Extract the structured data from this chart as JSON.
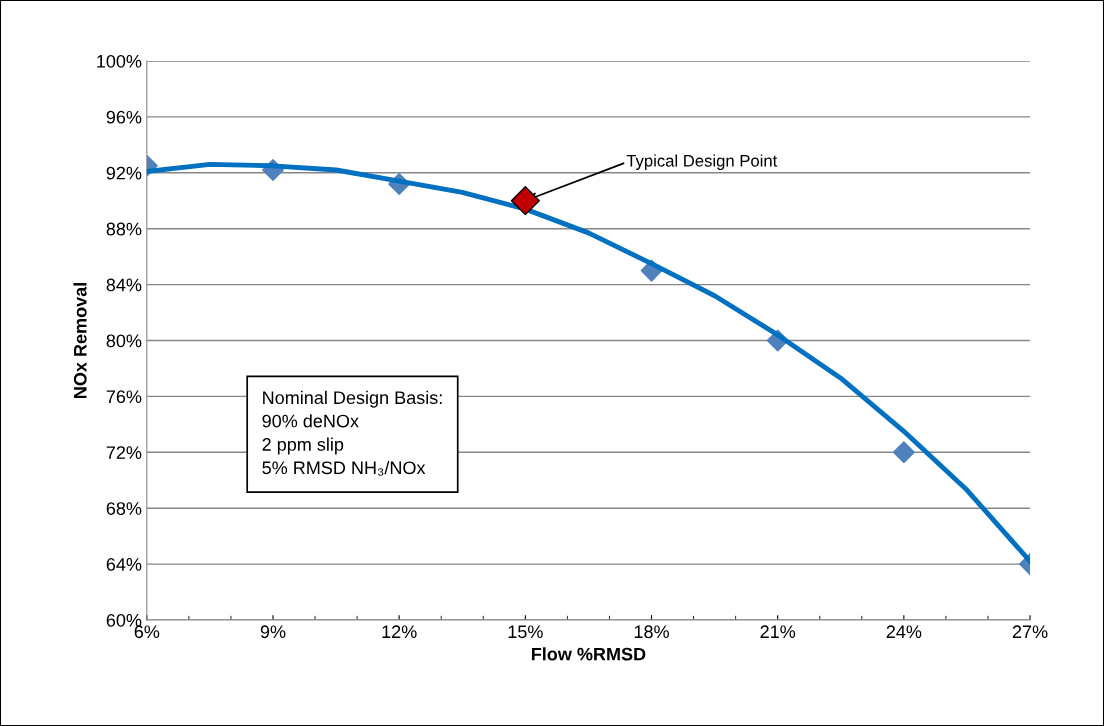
{
  "chart_data": {
    "type": "scatter",
    "xlabel": "Flow %RMSD",
    "ylabel": "NOx Removal",
    "x": [
      6,
      9,
      12,
      18,
      21,
      24,
      27
    ],
    "series": [
      {
        "color": "#4f81bd",
        "marker": "diamond",
        "values": [
          92.5,
          92.2,
          91.2,
          85,
          80,
          72,
          64
        ]
      },
      {
        "type": "line",
        "color": "#0070c0",
        "marker": "none",
        "x": [
          6,
          7.5,
          9,
          10.5,
          12,
          13.5,
          15,
          16.5,
          18,
          19.5,
          21,
          22.5,
          24,
          25.5,
          27
        ],
        "values": [
          92.1,
          92.6,
          92.5,
          92.2,
          91.4,
          90.6,
          89.4,
          87.7,
          85.5,
          83.2,
          80.4,
          77.3,
          73.5,
          69.3,
          64.2
        ]
      },
      {
        "type": "scatter",
        "color": "#c00000",
        "marker": "diamond",
        "x": [
          15
        ],
        "values": [
          90
        ]
      }
    ],
    "xlim": [
      6,
      27
    ],
    "ylim": [
      60,
      100
    ],
    "xticks": [
      {
        "value": 6,
        "label": "6%"
      },
      {
        "value": 9,
        "label": "9%"
      },
      {
        "value": 12,
        "label": "12%"
      },
      {
        "value": 15,
        "label": "15%"
      },
      {
        "value": 18,
        "label": "18%"
      },
      {
        "value": 21,
        "label": "21%"
      },
      {
        "value": 24,
        "label": "24%"
      },
      {
        "value": 27,
        "label": "27%"
      }
    ],
    "yticks": [
      {
        "value": 60,
        "label": "60%"
      },
      {
        "value": 64,
        "label": "64%"
      },
      {
        "value": 68,
        "label": "68%"
      },
      {
        "value": 72,
        "label": "72%"
      },
      {
        "value": 76,
        "label": "76%"
      },
      {
        "value": 80,
        "label": "80%"
      },
      {
        "value": 84,
        "label": "84%"
      },
      {
        "value": 88,
        "label": "88%"
      },
      {
        "value": 92,
        "label": "92%"
      },
      {
        "value": 96,
        "label": "96%"
      },
      {
        "value": 100,
        "label": "100%"
      }
    ],
    "grid": "y",
    "legend": false,
    "annotations": [
      {
        "text": "Typical Design Point",
        "x": 15,
        "y": 90
      },
      "Nominal Design Basis:\n90% deNOx\n2 ppm slip\n5% RMSD NH₃/NOx"
    ]
  }
}
